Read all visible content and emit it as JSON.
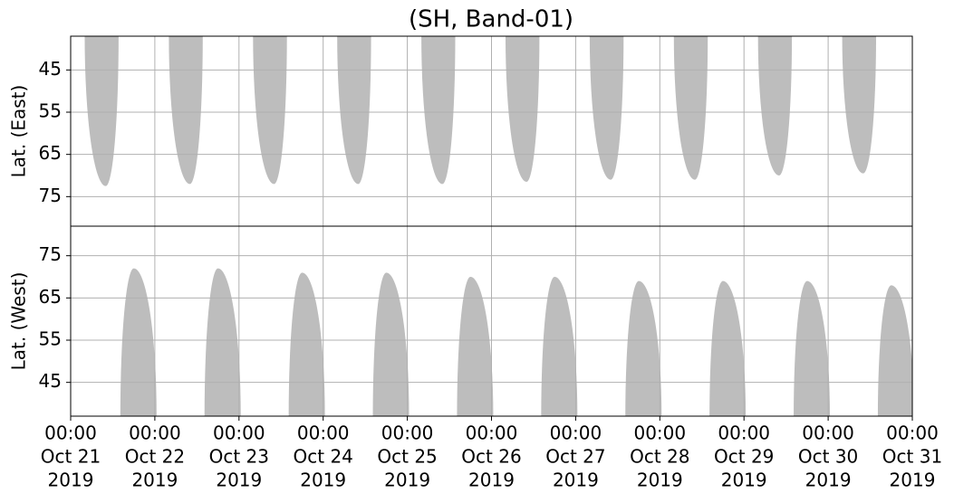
{
  "chart_data": [
    {
      "type": "swath",
      "title": "(SH, Band-01)",
      "y_label": "Lat. (East)",
      "ylim": [
        37,
        82
      ],
      "inverted": true,
      "yticks": [
        45,
        55,
        65,
        75
      ],
      "xlim": [
        "2019-10-21T00:00",
        "2019-10-31T00:00"
      ],
      "grid": true,
      "color": "#bdbdbd",
      "swaths": [
        {
          "start": "2019-10-21T04:00",
          "peak": "2019-10-21T10:00",
          "end": "2019-10-21T13:40",
          "peak_lat": 72.5
        },
        {
          "start": "2019-10-22T04:00",
          "peak": "2019-10-22T10:00",
          "end": "2019-10-22T13:40",
          "peak_lat": 72
        },
        {
          "start": "2019-10-23T04:00",
          "peak": "2019-10-23T10:00",
          "end": "2019-10-23T13:40",
          "peak_lat": 72
        },
        {
          "start": "2019-10-24T04:00",
          "peak": "2019-10-24T10:00",
          "end": "2019-10-24T13:40",
          "peak_lat": 72
        },
        {
          "start": "2019-10-25T04:00",
          "peak": "2019-10-25T10:00",
          "end": "2019-10-25T13:40",
          "peak_lat": 72
        },
        {
          "start": "2019-10-26T04:00",
          "peak": "2019-10-26T10:00",
          "end": "2019-10-26T13:40",
          "peak_lat": 71.5
        },
        {
          "start": "2019-10-27T04:00",
          "peak": "2019-10-27T10:00",
          "end": "2019-10-27T13:40",
          "peak_lat": 71
        },
        {
          "start": "2019-10-28T04:00",
          "peak": "2019-10-28T10:00",
          "end": "2019-10-28T13:40",
          "peak_lat": 71
        },
        {
          "start": "2019-10-29T04:00",
          "peak": "2019-10-29T10:00",
          "end": "2019-10-29T13:40",
          "peak_lat": 70
        },
        {
          "start": "2019-10-30T04:00",
          "peak": "2019-10-30T10:00",
          "end": "2019-10-30T13:40",
          "peak_lat": 69.5
        }
      ]
    },
    {
      "type": "swath",
      "y_label": "Lat. (West)",
      "ylim": [
        37,
        82
      ],
      "inverted": false,
      "yticks": [
        45,
        55,
        65,
        75
      ],
      "xlim": [
        "2019-10-21T00:00",
        "2019-10-31T00:00"
      ],
      "grid": true,
      "color": "#bdbdbd",
      "xticks": [
        {
          "value": "2019-10-21T00:00",
          "label": [
            "00:00",
            "Oct 21",
            "2019"
          ]
        },
        {
          "value": "2019-10-22T00:00",
          "label": [
            "00:00",
            "Oct 22",
            "2019"
          ]
        },
        {
          "value": "2019-10-23T00:00",
          "label": [
            "00:00",
            "Oct 23",
            "2019"
          ]
        },
        {
          "value": "2019-10-24T00:00",
          "label": [
            "00:00",
            "Oct 24",
            "2019"
          ]
        },
        {
          "value": "2019-10-25T00:00",
          "label": [
            "00:00",
            "Oct 25",
            "2019"
          ]
        },
        {
          "value": "2019-10-26T00:00",
          "label": [
            "00:00",
            "Oct 26",
            "2019"
          ]
        },
        {
          "value": "2019-10-27T00:00",
          "label": [
            "00:00",
            "Oct 27",
            "2019"
          ]
        },
        {
          "value": "2019-10-28T00:00",
          "label": [
            "00:00",
            "Oct 28",
            "2019"
          ]
        },
        {
          "value": "2019-10-29T00:00",
          "label": [
            "00:00",
            "Oct 29",
            "2019"
          ]
        },
        {
          "value": "2019-10-30T00:00",
          "label": [
            "00:00",
            "Oct 30",
            "2019"
          ]
        },
        {
          "value": "2019-10-31T00:00",
          "label": [
            "00:00",
            "Oct 31",
            "2019"
          ]
        }
      ],
      "swaths": [
        {
          "start": "2019-10-21T14:10",
          "peak": "2019-10-21T18:00",
          "end": "2019-10-22T00:30",
          "peak_lat": 72
        },
        {
          "start": "2019-10-22T14:10",
          "peak": "2019-10-22T18:00",
          "end": "2019-10-23T00:30",
          "peak_lat": 72
        },
        {
          "start": "2019-10-23T14:10",
          "peak": "2019-10-23T18:00",
          "end": "2019-10-24T00:30",
          "peak_lat": 71
        },
        {
          "start": "2019-10-24T14:10",
          "peak": "2019-10-24T18:00",
          "end": "2019-10-25T00:30",
          "peak_lat": 71
        },
        {
          "start": "2019-10-25T14:10",
          "peak": "2019-10-25T18:00",
          "end": "2019-10-26T00:30",
          "peak_lat": 70
        },
        {
          "start": "2019-10-26T14:10",
          "peak": "2019-10-26T18:00",
          "end": "2019-10-27T00:30",
          "peak_lat": 70
        },
        {
          "start": "2019-10-27T14:10",
          "peak": "2019-10-27T18:00",
          "end": "2019-10-28T00:30",
          "peak_lat": 69
        },
        {
          "start": "2019-10-28T14:10",
          "peak": "2019-10-28T18:00",
          "end": "2019-10-29T00:30",
          "peak_lat": 69
        },
        {
          "start": "2019-10-29T14:10",
          "peak": "2019-10-29T18:00",
          "end": "2019-10-30T00:30",
          "peak_lat": 69
        },
        {
          "start": "2019-10-30T14:10",
          "peak": "2019-10-30T18:00",
          "end": "2019-10-31T00:30",
          "peak_lat": 68
        }
      ]
    }
  ]
}
